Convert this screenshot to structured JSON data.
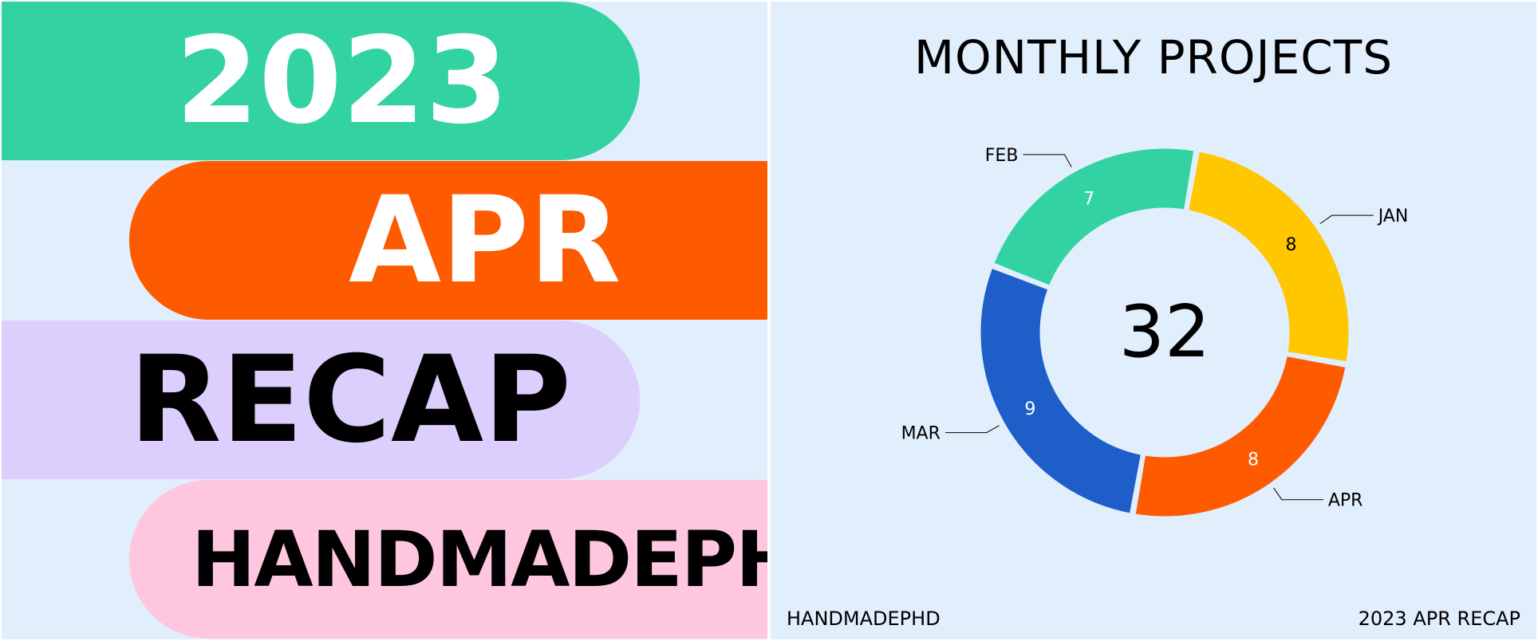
{
  "cover": {
    "year": "2023",
    "month": "APR",
    "recap": "RECAP",
    "brand": "HANDMADEPHD"
  },
  "colors": {
    "background": "#e1eefc",
    "green": "#33d2a2",
    "orange": "#fe5a00",
    "lavender": "#dccffd",
    "pink": "#ffc6e0",
    "yellow": "#ffc700",
    "blue": "#1e5ec8"
  },
  "footer": {
    "left": "HANDMADEPHD",
    "right": "2023 APR RECAP"
  },
  "chart_data": {
    "type": "pie",
    "subtype": "donut",
    "title": "MONTHLY PROJECTS",
    "center_label": "32",
    "categories": [
      "APR",
      "MAR",
      "FEB",
      "JAN"
    ],
    "values": [
      8,
      9,
      7,
      8
    ],
    "colors": [
      "#fe5a00",
      "#1e5ec8",
      "#33d2a2",
      "#ffc700"
    ],
    "value_label_colors": [
      "#ffffff",
      "#ffffff",
      "#ffffff",
      "#000000"
    ],
    "start_angle_deg": 10,
    "direction": "clockwise",
    "legend": "none"
  }
}
